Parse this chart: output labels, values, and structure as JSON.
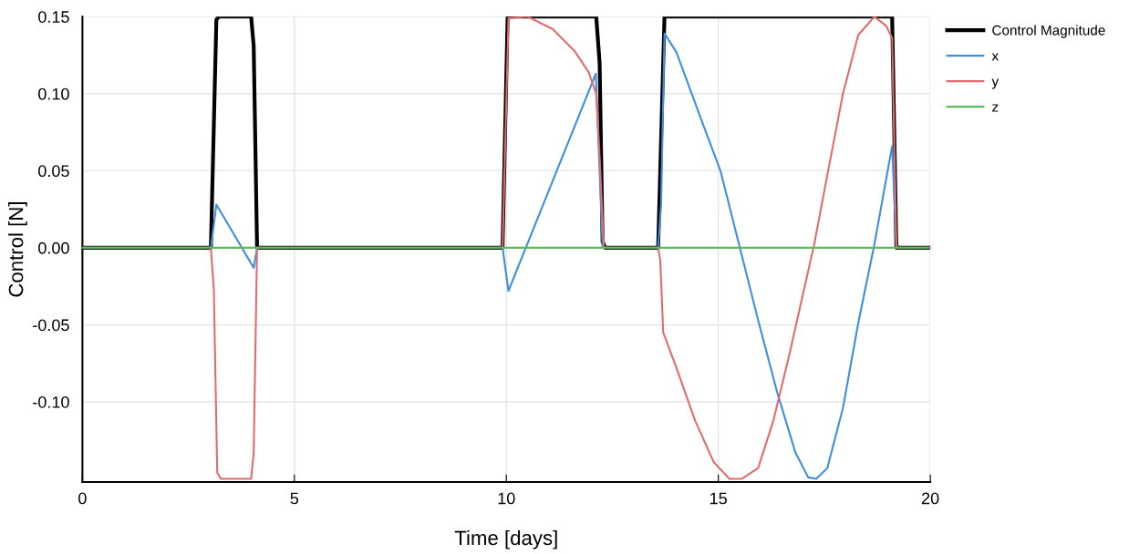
{
  "chart_data": {
    "type": "line",
    "xlabel": "Time [days]",
    "ylabel": "Control [N]",
    "xlim": [
      0,
      20
    ],
    "xticks": [
      0,
      5,
      10,
      15,
      20
    ],
    "ylim": [
      -0.152,
      0.15
    ],
    "yticks": [
      {
        "value": -0.1,
        "label": "-0.10"
      },
      {
        "value": -0.05,
        "label": "-0.05"
      },
      {
        "value": 0,
        "label": "0.00"
      },
      {
        "value": 0.05,
        "label": "0.05"
      },
      {
        "value": 0.1,
        "label": "0.10"
      },
      {
        "value": 0.15,
        "label": "0.15"
      }
    ],
    "grid": true,
    "legend": "top right",
    "line_style": "solid",
    "marker": "none",
    "series": [
      {
        "name": "Control Magnitude",
        "color": "#000000",
        "x": [
          0,
          3.03,
          3.16,
          3.22,
          3.98,
          4.04,
          4.12,
          9.91,
          10.03,
          12.12,
          12.2,
          12.27,
          12.33,
          13.58,
          13.73,
          19.1,
          19.2,
          20
        ],
        "values": [
          0,
          0,
          0.148,
          0.15,
          0.15,
          0.131,
          0,
          0,
          0.15,
          0.15,
          0.12,
          0.004,
          0,
          0,
          0.15,
          0.15,
          0,
          0
        ]
      },
      {
        "name": "x",
        "color": "#3f8fdd",
        "x": [
          0,
          3.03,
          3.16,
          4.04,
          4.12,
          9.91,
          10.05,
          12.11,
          12.27,
          13.58,
          13.65,
          13.73,
          14.01,
          14.6,
          15.05,
          15.49,
          15.94,
          16.39,
          16.82,
          17.12,
          17.31,
          17.57,
          17.94,
          18.3,
          18.68,
          19.1,
          19.2,
          20
        ],
        "values": [
          0,
          0,
          0.028,
          -0.013,
          0,
          0,
          -0.028,
          0.113,
          0,
          0,
          0.028,
          0.139,
          0.127,
          0.083,
          0.05,
          0.002,
          -0.047,
          -0.094,
          -0.133,
          -0.149,
          -0.15,
          -0.143,
          -0.104,
          -0.049,
          0.002,
          0.066,
          0,
          0
        ]
      },
      {
        "name": "y",
        "color": "#e06c6c",
        "x": [
          0,
          3.03,
          3.1,
          3.18,
          3.27,
          3.98,
          4.04,
          4.12,
          9.91,
          10.05,
          10.5,
          11.09,
          11.6,
          11.94,
          12.12,
          12.2,
          12.3,
          13.58,
          13.63,
          13.7,
          14.0,
          14.45,
          14.89,
          15.26,
          15.55,
          15.94,
          16.3,
          16.67,
          17.26,
          17.57,
          17.94,
          18.3,
          18.68,
          18.96,
          19.1,
          19.2,
          20
        ],
        "values": [
          0,
          0,
          -0.027,
          -0.146,
          -0.15,
          -0.15,
          -0.133,
          0,
          0,
          0.149,
          0.15,
          0.142,
          0.128,
          0.114,
          0.1,
          0.059,
          0,
          0,
          -0.008,
          -0.055,
          -0.077,
          -0.112,
          -0.139,
          -0.15,
          -0.15,
          -0.143,
          -0.112,
          -0.07,
          0.002,
          0.047,
          0.1,
          0.138,
          0.15,
          0.144,
          0.136,
          0,
          0
        ]
      },
      {
        "name": "z",
        "color": "#5cb85c",
        "x": [
          0,
          20
        ],
        "values": [
          0,
          0
        ]
      }
    ]
  }
}
